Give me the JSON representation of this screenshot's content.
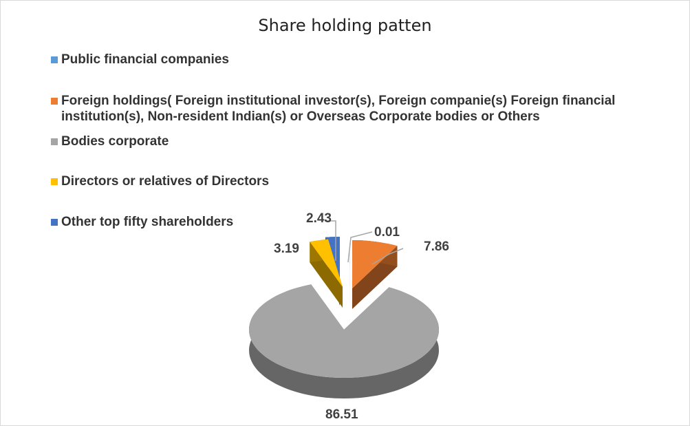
{
  "chart_data": {
    "type": "pie",
    "title": "Share holding patten",
    "legend_position": "top-left",
    "series": [
      {
        "name": "Public financial companies",
        "value": 0.01,
        "label": "0.01",
        "color": "#5b9bd5"
      },
      {
        "name": "Foreign holdings( Foreign institutional investor(s), Foreign companie(s) Foreign financial institution(s), Non-resident Indian(s) or Overseas Corporate bodies or Others",
        "value": 7.86,
        "label": "7.86",
        "color": "#ed7d31"
      },
      {
        "name": "Bodies corporate",
        "value": 86.51,
        "label": "86.51",
        "color": "#a5a5a5"
      },
      {
        "name": "Directors or relatives of Directors",
        "value": 3.19,
        "label": "3.19",
        "color": "#ffc000"
      },
      {
        "name": "Other top fifty shareholders",
        "value": 2.43,
        "label": "2.43",
        "color": "#4472c4"
      }
    ]
  }
}
